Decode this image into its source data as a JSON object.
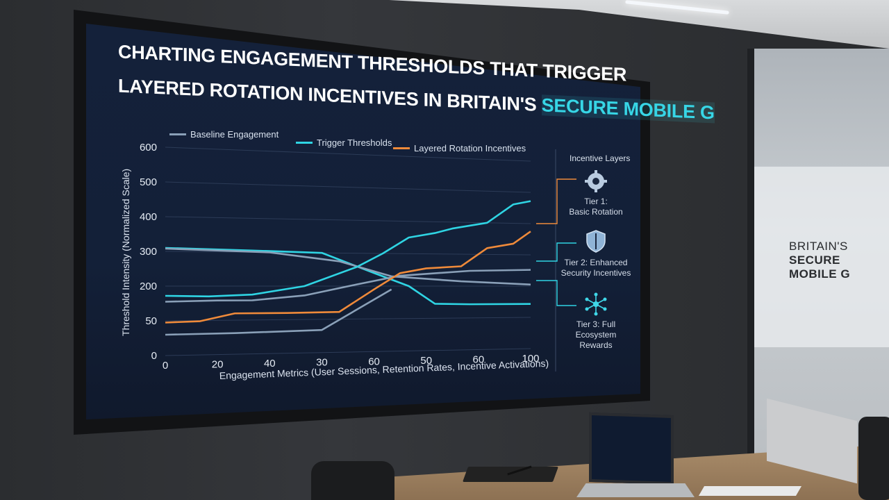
{
  "title": {
    "line1": "CHARTING ENGAGEMENT THRESHOLDS THAT TRIGGER",
    "line2": "LAYERED ROTATION INCENTIVES IN BRITAIN'S",
    "highlight": "SECURE MOBILE G"
  },
  "legend": {
    "baseline": "Baseline Engagement",
    "trigger": "Trigger Thresholds",
    "layered": "Layered Rotation Incentives"
  },
  "side_panel": {
    "title": "Incentive Layers",
    "tiers": [
      {
        "label_line1": "Tier 1:",
        "label_line2": "Basic Rotation",
        "icon": "gear-icon"
      },
      {
        "label_line1": "Tier 2: Enhanced",
        "label_line2": "Security Incentives",
        "icon": "shield-icon"
      },
      {
        "label_line1": "Tier 3: Full",
        "label_line2": "Ecosystem",
        "label_line3": "Rewards",
        "icon": "network-icon"
      }
    ]
  },
  "wall_sign": {
    "line1": "BRITAIN'S",
    "line2": "SECURE",
    "line3": "MOBILE G"
  },
  "colors": {
    "baseline": "#8aa0b8",
    "trigger": "#2fd4e3",
    "layered": "#ef8a3a",
    "screen_bg": "#14213a"
  },
  "chart_data": {
    "type": "line",
    "ylabel": "Threshold Intensity (Normalized Scale)",
    "xlabel": "Engagement Metrics (User Sessions, Retention Rates, Incentive Activations)",
    "y_ticks": [
      "600",
      "500",
      "400",
      "300",
      "200",
      "50",
      "0"
    ],
    "x_ticks": [
      "0",
      "20",
      "40",
      "30",
      "60",
      "50",
      "60",
      "100"
    ],
    "ylim": [
      0,
      600
    ],
    "grid": true,
    "legend_position": "top",
    "series": [
      {
        "name": "Baseline Engagement",
        "color": "#8aa0b8",
        "points": [
          [
            0,
            155
          ],
          [
            30,
            158
          ],
          [
            50,
            158
          ],
          [
            80,
            172
          ],
          [
            110,
            205
          ],
          [
            135,
            232
          ],
          [
            175,
            248
          ],
          [
            210,
            252
          ]
        ]
      },
      {
        "name": "Trigger Thresholds",
        "color": "#2fd4e3",
        "points": [
          [
            0,
            172
          ],
          [
            25,
            170
          ],
          [
            50,
            175
          ],
          [
            80,
            200
          ],
          [
            110,
            258
          ],
          [
            125,
            300
          ],
          [
            140,
            350
          ],
          [
            155,
            365
          ],
          [
            165,
            380
          ],
          [
            185,
            400
          ],
          [
            200,
            460
          ],
          [
            210,
            472
          ]
        ]
      },
      {
        "name": "Layered Rotation Incentives",
        "color": "#ef8a3a",
        "points": [
          [
            0,
            95
          ],
          [
            20,
            98
          ],
          [
            40,
            120
          ],
          [
            70,
            120
          ],
          [
            100,
            122
          ],
          [
            120,
            190
          ],
          [
            135,
            240
          ],
          [
            150,
            255
          ],
          [
            170,
            262
          ],
          [
            185,
            320
          ],
          [
            200,
            335
          ],
          [
            210,
            375
          ]
        ]
      }
    ],
    "extra_lines": [
      {
        "series": "Trigger Thresholds (decline)",
        "color": "#2fd4e3",
        "points": [
          [
            0,
            310
          ],
          [
            50,
            305
          ],
          [
            90,
            300
          ],
          [
            120,
            240
          ],
          [
            140,
            200
          ],
          [
            155,
            145
          ],
          [
            175,
            143
          ],
          [
            210,
            143
          ]
        ]
      },
      {
        "series": "Baseline (steady)",
        "color": "#8aa0b8",
        "points": [
          [
            0,
            308
          ],
          [
            60,
            300
          ],
          [
            100,
            275
          ],
          [
            130,
            230
          ],
          [
            170,
            215
          ],
          [
            210,
            205
          ]
        ]
      },
      {
        "series": "Baseline (early)",
        "color": "#8aa0b8",
        "points": [
          [
            0,
            60
          ],
          [
            40,
            62
          ],
          [
            90,
            68
          ],
          [
            130,
            190
          ]
        ]
      }
    ]
  }
}
